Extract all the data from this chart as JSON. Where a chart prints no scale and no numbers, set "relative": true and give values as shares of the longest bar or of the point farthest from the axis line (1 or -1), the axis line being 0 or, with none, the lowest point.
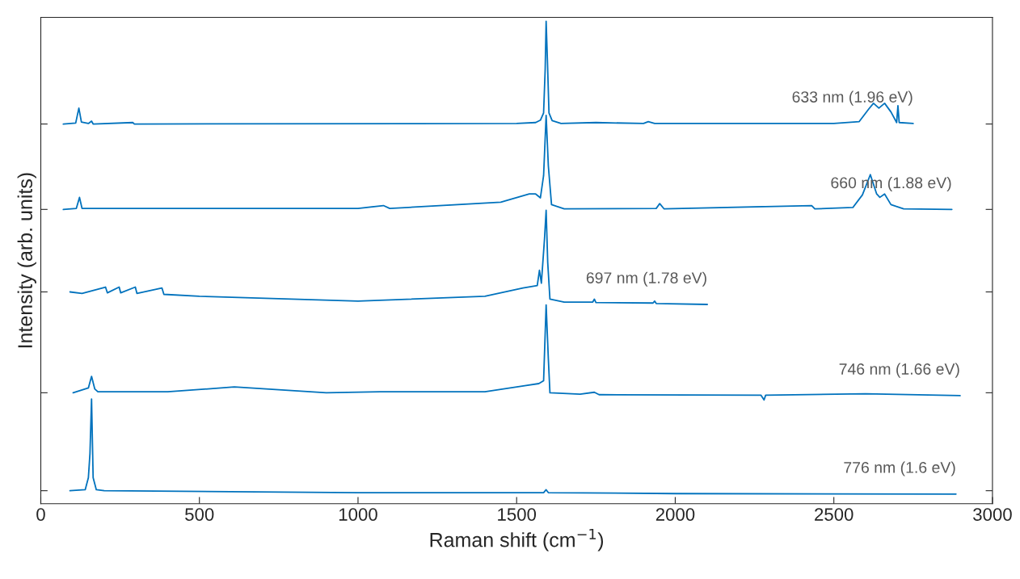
{
  "chart_data": {
    "type": "line",
    "relative": true,
    "xlabel": "Raman shift (cm$^{−1}$)",
    "ylabel": "Intensity (arb. units)",
    "xlim": [
      0,
      3000
    ],
    "xticks": [
      0,
      500,
      1000,
      1500,
      2000,
      2500,
      3000
    ],
    "tick_labels": "x",
    "grid": false,
    "legend": false,
    "series": [
      {
        "name": "633 nm (1.96 eV)",
        "color": "#0072bd",
        "x": [
          71,
          110,
          120,
          128,
          150,
          160,
          165,
          290,
          295,
          1500,
          1560,
          1575,
          1585,
          1590,
          1593,
          1597,
          1602,
          1612,
          1640,
          1750,
          1900,
          1915,
          1935,
          2500,
          2580,
          2610,
          2625,
          2642,
          2660,
          2680,
          2698,
          2702,
          2706,
          2750
        ],
        "values": [
          0.787,
          0.789,
          0.82,
          0.791,
          0.788,
          0.793,
          0.787,
          0.79,
          0.787,
          0.788,
          0.79,
          0.795,
          0.81,
          0.9,
          1.0,
          0.92,
          0.81,
          0.794,
          0.788,
          0.79,
          0.788,
          0.792,
          0.788,
          0.788,
          0.792,
          0.818,
          0.83,
          0.82,
          0.83,
          0.812,
          0.79,
          0.825,
          0.79,
          0.788
        ]
      },
      {
        "name": "660 nm (1.88 eV)",
        "color": "#0072bd",
        "x": [
          71,
          112,
          122,
          130,
          1000,
          1080,
          1100,
          1450,
          1540,
          1560,
          1575,
          1585,
          1593,
          1600,
          1610,
          1650,
          1940,
          1951,
          1965,
          2430,
          2440,
          2560,
          2590,
          2615,
          2635,
          2645,
          2660,
          2680,
          2720,
          2872
        ],
        "values": [
          0.61,
          0.612,
          0.635,
          0.612,
          0.612,
          0.618,
          0.612,
          0.625,
          0.642,
          0.642,
          0.634,
          0.68,
          0.805,
          0.7,
          0.62,
          0.611,
          0.612,
          0.622,
          0.611,
          0.618,
          0.611,
          0.614,
          0.64,
          0.682,
          0.642,
          0.635,
          0.642,
          0.62,
          0.611,
          0.61
        ]
      },
      {
        "name": "697 nm (1.78 eV)",
        "color": "#0072bd",
        "x": [
          92,
          130,
          204,
          210,
          247,
          252,
          298,
          303,
          382,
          388,
          500,
          1000,
          1400,
          1520,
          1565,
          1572,
          1578,
          1588,
          1593,
          1598,
          1605,
          1650,
          1740,
          1745,
          1750,
          1930,
          1935,
          1940,
          2101
        ],
        "values": [
          0.439,
          0.436,
          0.449,
          0.437,
          0.449,
          0.437,
          0.449,
          0.436,
          0.447,
          0.434,
          0.43,
          0.42,
          0.43,
          0.447,
          0.452,
          0.484,
          0.457,
          0.55,
          0.608,
          0.5,
          0.424,
          0.418,
          0.418,
          0.424,
          0.417,
          0.416,
          0.42,
          0.415,
          0.413
        ]
      },
      {
        "name": "746 nm (1.66 eV)",
        "color": "#0072bd",
        "x": [
          102,
          150,
          160,
          170,
          180,
          400,
          610,
          900,
          1070,
          1400,
          1530,
          1570,
          1585,
          1593,
          1600,
          1605,
          1700,
          1745,
          1760,
          2270,
          2280,
          2285,
          2600,
          2898
        ],
        "values": [
          0.23,
          0.24,
          0.264,
          0.238,
          0.232,
          0.232,
          0.242,
          0.23,
          0.232,
          0.232,
          0.245,
          0.249,
          0.255,
          0.412,
          0.3,
          0.23,
          0.227,
          0.231,
          0.226,
          0.225,
          0.215,
          0.225,
          0.228,
          0.224
        ]
      },
      {
        "name": "776 nm (1.6 eV)",
        "color": "#0072bd",
        "x": [
          92,
          140,
          150,
          155,
          160,
          165,
          175,
          200,
          1000,
          1585,
          1593,
          1600,
          2000,
          2885
        ],
        "values": [
          0.027,
          0.029,
          0.054,
          0.104,
          0.217,
          0.054,
          0.029,
          0.027,
          0.023,
          0.023,
          0.029,
          0.023,
          0.021,
          0.02
        ]
      }
    ]
  }
}
